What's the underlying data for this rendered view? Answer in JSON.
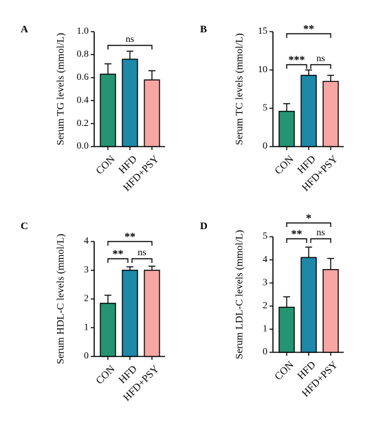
{
  "colors": {
    "CON": "#249471",
    "HFD": "#1E88A8",
    "HFD+PSY": "#F8A5A3",
    "axis": "#000000"
  },
  "chart_data": [
    {
      "panel": "A",
      "type": "bar",
      "categories": [
        "CON",
        "HFD",
        "HFD+PSY"
      ],
      "values": [
        0.63,
        0.76,
        0.58
      ],
      "errors": [
        0.09,
        0.07,
        0.08
      ],
      "ylabel": "Serum TG levels (mmol/L)",
      "ylim": [
        0,
        1.0
      ],
      "yticks": [
        "0.0",
        "0.2",
        "0.4",
        "0.6",
        "0.8",
        "1.0"
      ],
      "significance": [
        {
          "from": 0,
          "to": 2,
          "label": "ns"
        }
      ]
    },
    {
      "panel": "B",
      "type": "bar",
      "categories": [
        "CON",
        "HFD",
        "HFD+PSY"
      ],
      "values": [
        4.6,
        9.3,
        8.5
      ],
      "errors": [
        1.0,
        0.7,
        0.8
      ],
      "ylabel": "Serum TC levels (mmol/L)",
      "ylim": [
        0,
        15
      ],
      "yticks": [
        "0",
        "5",
        "10",
        "15"
      ],
      "significance": [
        {
          "from": 0,
          "to": 2,
          "label": "**"
        },
        {
          "from": 0,
          "to": 1,
          "label": "***"
        },
        {
          "from": 1,
          "to": 2,
          "label": "ns"
        }
      ]
    },
    {
      "panel": "C",
      "type": "bar",
      "categories": [
        "CON",
        "HFD",
        "HFD+PSY"
      ],
      "values": [
        1.85,
        3.0,
        3.0
      ],
      "errors": [
        0.28,
        0.12,
        0.14
      ],
      "ylabel": "Serum HDL-C levels (mmol/L)",
      "ylim": [
        0,
        4
      ],
      "yticks": [
        "0",
        "1",
        "2",
        "3",
        "4"
      ],
      "significance": [
        {
          "from": 0,
          "to": 2,
          "label": "**"
        },
        {
          "from": 0,
          "to": 1,
          "label": "**"
        },
        {
          "from": 1,
          "to": 2,
          "label": "ns"
        }
      ]
    },
    {
      "panel": "D",
      "type": "bar",
      "categories": [
        "CON",
        "HFD",
        "HFD+PSY"
      ],
      "values": [
        1.95,
        4.1,
        3.58
      ],
      "errors": [
        0.45,
        0.45,
        0.48
      ],
      "ylabel": "Serum LDL-C levels (mmol/L)",
      "ylim": [
        0,
        5
      ],
      "yticks": [
        "0",
        "1",
        "2",
        "3",
        "4",
        "5"
      ],
      "significance": [
        {
          "from": 0,
          "to": 2,
          "label": "*"
        },
        {
          "from": 0,
          "to": 1,
          "label": "**"
        },
        {
          "from": 1,
          "to": 2,
          "label": "ns"
        }
      ]
    }
  ]
}
